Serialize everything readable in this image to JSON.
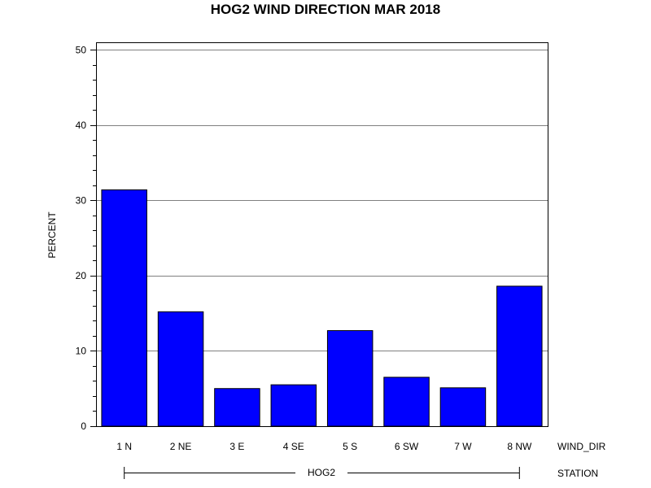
{
  "chart_data": {
    "type": "bar",
    "title": "HOG2 WIND DIRECTION MAR 2018",
    "ylabel": "PERCENT",
    "xlabel": "WIND_DIR",
    "group_label": "STATION",
    "group_value": "HOG2",
    "categories": [
      "1 N",
      "2 NE",
      "3 E",
      "4 SE",
      "5 S",
      "6 SW",
      "7 W",
      "8 NW"
    ],
    "values": [
      31.4,
      15.2,
      5.0,
      5.5,
      12.7,
      6.5,
      5.1,
      18.6
    ],
    "ylim": [
      0,
      51
    ],
    "yticks": [
      0,
      10,
      20,
      30,
      40,
      50
    ],
    "grid": true,
    "colors": {
      "bar_fill": "#0000ff",
      "bar_stroke": "#000000",
      "grid": "#808080",
      "axis": "#000000"
    }
  }
}
